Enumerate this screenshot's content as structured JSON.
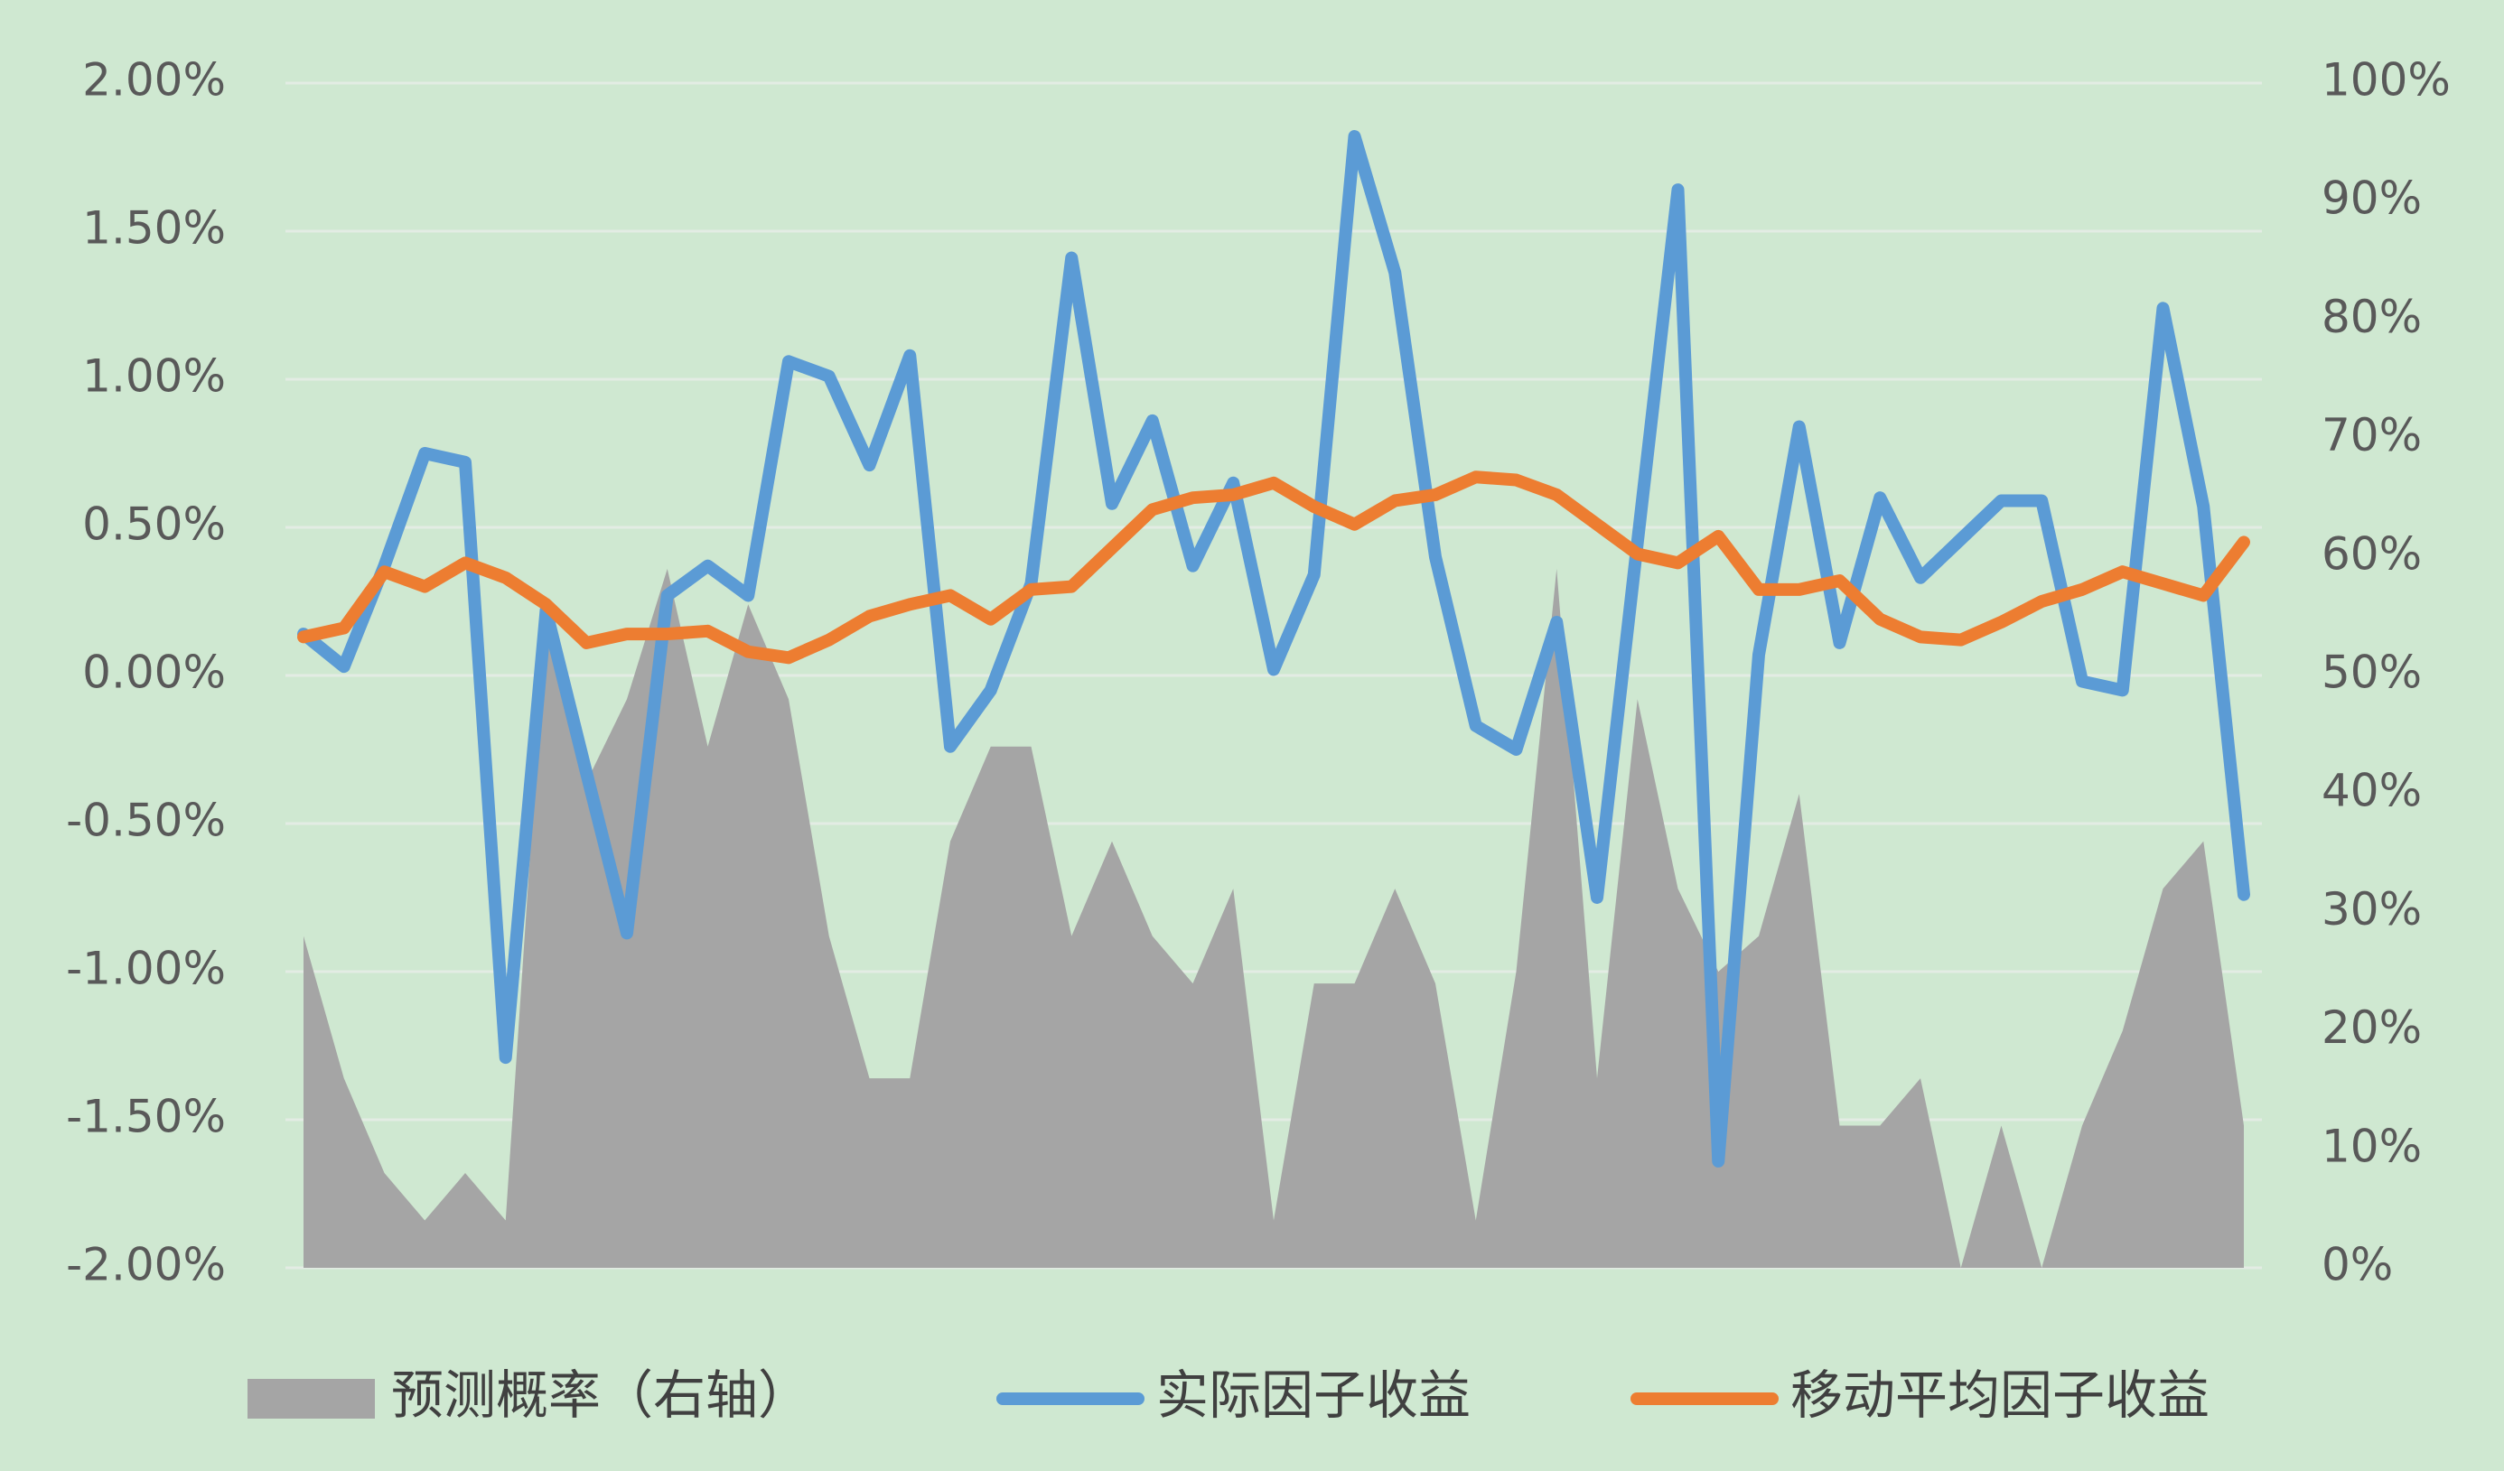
{
  "chart_data": {
    "type": "line",
    "categories": [
      null,
      null,
      null,
      null,
      null,
      null,
      null,
      null,
      null,
      null,
      null,
      null,
      null,
      null,
      null,
      null,
      null,
      null,
      null,
      null,
      null,
      null,
      null,
      null,
      null,
      null,
      null,
      null,
      null,
      null,
      null,
      null,
      null,
      null,
      null,
      null,
      null,
      null,
      null,
      null,
      null,
      null,
      null,
      null,
      null,
      null,
      null,
      null,
      null
    ],
    "ylim": [
      -2,
      2
    ],
    "yticks": [
      {
        "value": -2,
        "label": "-2.00%"
      },
      {
        "value": -1.5,
        "label": "-1.50%"
      },
      {
        "value": -1,
        "label": "-1.00%"
      },
      {
        "value": -0.5,
        "label": "-0.50%"
      },
      {
        "value": 0,
        "label": "0.00%"
      },
      {
        "value": 0.5,
        "label": "0.50%"
      },
      {
        "value": 1,
        "label": "1.00%"
      },
      {
        "value": 1.5,
        "label": "1.50%"
      },
      {
        "value": 2,
        "label": "2.00%"
      }
    ],
    "y2lim": [
      0,
      100
    ],
    "y2ticks": [
      {
        "value": 0,
        "label": "0%"
      },
      {
        "value": 10,
        "label": "10%"
      },
      {
        "value": 20,
        "label": "20%"
      },
      {
        "value": 30,
        "label": "30%"
      },
      {
        "value": 40,
        "label": "40%"
      },
      {
        "value": 50,
        "label": "50%"
      },
      {
        "value": 60,
        "label": "60%"
      },
      {
        "value": 70,
        "label": "70%"
      },
      {
        "value": 80,
        "label": "80%"
      },
      {
        "value": 90,
        "label": "90%"
      },
      {
        "value": 100,
        "label": "100%"
      }
    ],
    "grid": true,
    "legend": "bottom",
    "series": [
      {
        "name": "预测概率（右轴）",
        "type": "area",
        "axis": "y2",
        "color": "#a5a5a5",
        "values": [
          28,
          16,
          8,
          4,
          8,
          4,
          55,
          41,
          48,
          59,
          44,
          56,
          48,
          28,
          16,
          16,
          36,
          44,
          44,
          28,
          36,
          28,
          24,
          32,
          4,
          24,
          24,
          32,
          24,
          4,
          25,
          59,
          16,
          48,
          32,
          25,
          28,
          40,
          12,
          12,
          16,
          0,
          12,
          0,
          12,
          20,
          32,
          36,
          12
        ]
      },
      {
        "name": "实际因子收益",
        "type": "line",
        "color": "#5b9bd5",
        "values": [
          0.14,
          0.03,
          0.37,
          0.75,
          0.72,
          -1.29,
          0.22,
          -0.33,
          -0.87,
          0.27,
          0.37,
          0.27,
          1.06,
          1.01,
          0.71,
          1.08,
          -0.24,
          -0.05,
          0.31,
          1.41,
          0.58,
          0.86,
          0.37,
          0.65,
          0.02,
          0.34,
          1.82,
          1.36,
          0.4,
          -0.17,
          -0.25,
          0.18,
          -0.75,
          0.45,
          1.64,
          -1.64,
          0.07,
          0.84,
          0.11,
          0.6,
          0.33,
          0.46,
          0.59,
          0.59,
          -0.02,
          -0.05,
          1.24,
          0.57,
          -0.74
        ]
      },
      {
        "name": "移动平均因子收益",
        "type": "line",
        "color": "#ed7d31",
        "values": [
          0.13,
          0.16,
          0.35,
          0.3,
          0.38,
          0.33,
          0.24,
          0.11,
          0.14,
          0.14,
          0.15,
          0.08,
          0.06,
          0.12,
          0.2,
          0.24,
          0.27,
          0.19,
          0.29,
          0.3,
          0.43,
          0.56,
          0.6,
          0.61,
          0.65,
          0.57,
          0.51,
          0.59,
          0.61,
          0.67,
          0.66,
          0.61,
          0.51,
          0.41,
          0.38,
          0.47,
          0.29,
          0.29,
          0.32,
          0.19,
          0.13,
          0.12,
          0.18,
          0.25,
          0.29,
          0.35,
          0.31,
          0.27,
          0.45
        ]
      }
    ]
  }
}
